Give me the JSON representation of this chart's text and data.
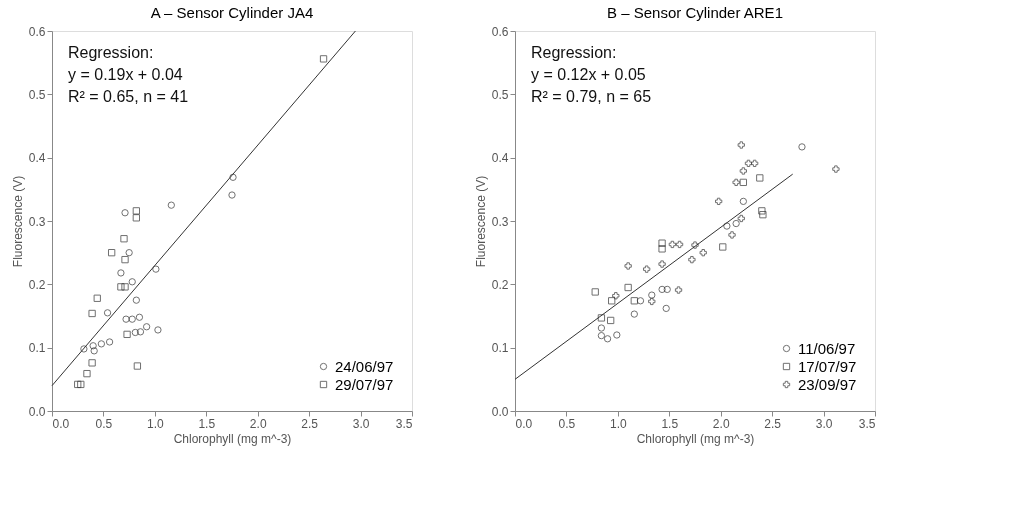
{
  "chart_data": [
    {
      "type": "scatter",
      "title": "A – Sensor Cylinder JA4",
      "xlabel": "Chlorophyll (mg m^-3)",
      "ylabel": "Fluorescence (V)",
      "legend": "bottom right",
      "grid": false,
      "xlim": [
        0,
        3.5
      ],
      "ylim": [
        0,
        0.6
      ],
      "xticks": [
        {
          "value": 0,
          "label": "0.0"
        },
        0.5,
        {
          "value": 1,
          "label": "1.0"
        },
        1.5,
        {
          "value": 2,
          "label": "2.0"
        },
        2.5,
        {
          "value": 3,
          "label": "3.0"
        },
        3.5
      ],
      "yticks": [
        {
          "value": 0,
          "label": "0.0"
        },
        0.1,
        0.2,
        0.3,
        0.4,
        0.5,
        0.6
      ],
      "annotations": [
        "Regression:",
        "y = 0.19x + 0.04",
        "R² = 0.65, n = 41"
      ],
      "series": [
        {
          "name": "24/06/97",
          "color": "#333333",
          "marker": "circle",
          "x": [
            0.75,
            1.01,
            0.67,
            0.78,
            0.82,
            0.54,
            0.72,
            0.78,
            0.85,
            0.92,
            1.03,
            0.81,
            0.86,
            0.31,
            0.4,
            0.48,
            0.56,
            0.41,
            0.71,
            1.16,
            1.76,
            1.75
          ],
          "values": [
            0.25,
            0.224,
            0.218,
            0.204,
            0.175,
            0.155,
            0.145,
            0.145,
            0.148,
            0.133,
            0.128,
            0.124,
            0.125,
            0.098,
            0.103,
            0.106,
            0.109,
            0.095,
            0.313,
            0.325,
            0.369,
            0.341
          ]
        },
        {
          "name": "29/07/97",
          "color": "#333333",
          "marker": "square",
          "x": [
            0.7,
            0.58,
            0.71,
            0.67,
            0.71,
            0.44,
            0.39,
            0.73,
            0.39,
            0.34,
            0.83,
            0.25,
            0.28,
            0.82,
            0.82,
            2.64
          ],
          "values": [
            0.272,
            0.25,
            0.239,
            0.196,
            0.196,
            0.178,
            0.154,
            0.121,
            0.076,
            0.059,
            0.071,
            0.042,
            0.042,
            0.316,
            0.305,
            0.556
          ]
        },
        {
          "type": "line",
          "color": "#333333",
          "marker": "none",
          "x": [
            0,
            2.95
          ],
          "values": [
            0.04,
            0.6
          ]
        }
      ]
    },
    {
      "type": "scatter",
      "title": "B – Sensor Cylinder ARE1",
      "xlabel": "Chlorophyll (mg m^-3)",
      "ylabel": "Fluorescence (V)",
      "legend": "bottom right",
      "grid": false,
      "xlim": [
        0,
        3.5
      ],
      "ylim": [
        0,
        0.6
      ],
      "xticks": [
        {
          "value": 0,
          "label": "0.0"
        },
        0.5,
        {
          "value": 1,
          "label": "1.0"
        },
        1.5,
        {
          "value": 2,
          "label": "2.0"
        },
        2.5,
        {
          "value": 3,
          "label": "3.0"
        },
        3.5
      ],
      "yticks": [
        {
          "value": 0,
          "label": "0.0"
        },
        0.1,
        0.2,
        0.3,
        0.4,
        0.5,
        0.6
      ],
      "annotations": [
        "Regression:",
        "y = 0.12x + 0.05",
        "R² = 0.79, n = 65"
      ],
      "series": [
        {
          "name": "11/06/97",
          "color": "#333333",
          "marker": "circle",
          "x": [
            0.84,
            0.84,
            0.9,
            0.99,
            1.16,
            1.22,
            1.43,
            1.48,
            1.47,
            1.33,
            2.22,
            2.15,
            2.79,
            2.06
          ],
          "values": [
            0.131,
            0.119,
            0.114,
            0.12,
            0.153,
            0.174,
            0.192,
            0.192,
            0.162,
            0.183,
            0.331,
            0.296,
            0.417,
            0.292
          ]
        },
        {
          "name": "17/07/97",
          "color": "#333333",
          "marker": "square",
          "x": [
            0.78,
            0.84,
            0.93,
            0.94,
            1.1,
            1.16,
            1.43,
            1.43,
            2.02,
            2.22,
            2.38,
            2.4,
            2.41
          ],
          "values": [
            0.188,
            0.147,
            0.143,
            0.174,
            0.195,
            0.174,
            0.256,
            0.265,
            0.259,
            0.361,
            0.368,
            0.316,
            0.31
          ]
        },
        {
          "name": "23/09/97",
          "color": "#333333",
          "marker": "cross",
          "x": [
            1.1,
            1.28,
            1.43,
            1.33,
            1.59,
            1.6,
            1.72,
            1.83,
            1.75,
            0.98,
            1.53,
            2.11,
            2.2,
            2.22,
            2.27,
            2.33,
            2.15,
            1.98,
            3.12,
            2.2
          ],
          "values": [
            0.229,
            0.224,
            0.232,
            0.173,
            0.191,
            0.263,
            0.239,
            0.25,
            0.262,
            0.182,
            0.263,
            0.278,
            0.42,
            0.379,
            0.391,
            0.391,
            0.361,
            0.331,
            0.382,
            0.304
          ]
        },
        {
          "type": "line",
          "color": "#333333",
          "marker": "none",
          "x": [
            0,
            2.7
          ],
          "values": [
            0.05,
            0.374
          ]
        }
      ]
    }
  ]
}
